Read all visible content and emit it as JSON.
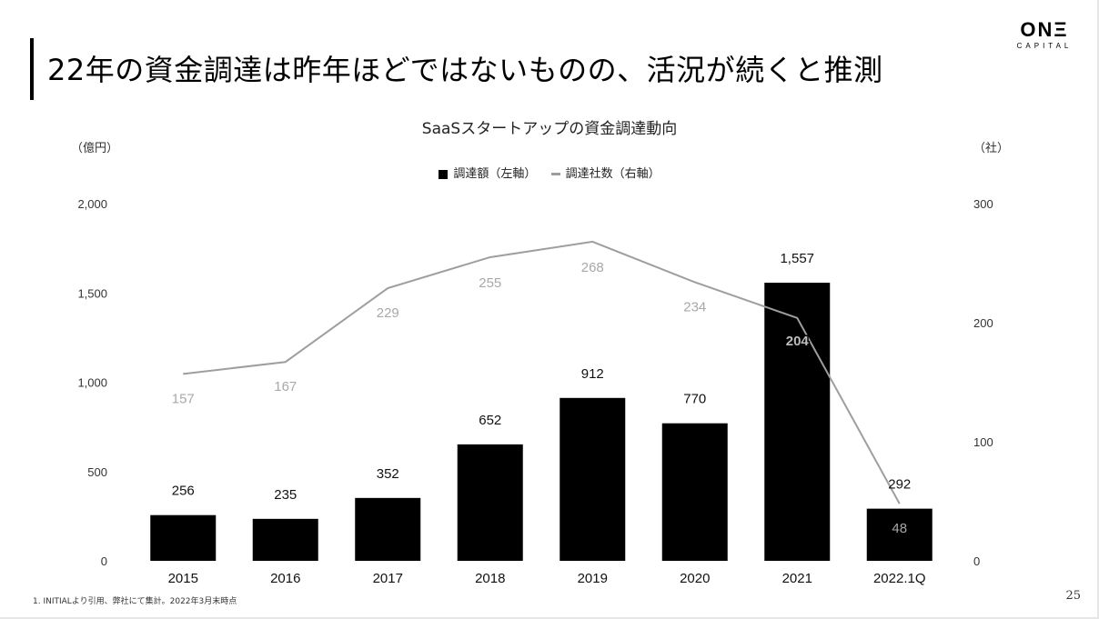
{
  "slide": {
    "title": "22年の資金調達は昨年ほどではないものの、活況が続くと推測",
    "logo_main": "ONΞ",
    "logo_sub": "CAPITAL",
    "footnote": "1. INITIALより引用、弊社にて集計。2022年3月末時点",
    "page_number": "25"
  },
  "chart_data": {
    "type": "bar",
    "title": "SaaSスタートアップの資金調達動向",
    "ylabel_left": "（億円）",
    "ylabel_right": "（社）",
    "categories": [
      "2015",
      "2016",
      "2017",
      "2018",
      "2019",
      "2020",
      "2021",
      "2022.1Q"
    ],
    "series": [
      {
        "name": "調達額（左軸）",
        "kind": "bar",
        "axis": "left",
        "color": "#000000",
        "values": [
          256,
          235,
          352,
          652,
          912,
          770,
          1557,
          292
        ]
      },
      {
        "name": "調達社数（右軸）",
        "kind": "line",
        "axis": "right",
        "color": "#9e9e9e",
        "values": [
          157,
          167,
          229,
          255,
          268,
          234,
          204,
          48
        ]
      }
    ],
    "ylim_left": [
      0,
      2000
    ],
    "yticks_left": [
      "0",
      "500",
      "1,000",
      "1,500",
      "2,000"
    ],
    "ylim_right": [
      0,
      300
    ],
    "yticks_right": [
      "0",
      "100",
      "200",
      "300"
    ],
    "bar_labels": [
      "256",
      "235",
      "352",
      "652",
      "912",
      "770",
      "1,557",
      "292"
    ],
    "line_labels": [
      "157",
      "167",
      "229",
      "255",
      "268",
      "234",
      "204",
      "48"
    ],
    "legend_position": "top-center",
    "grid": false
  }
}
